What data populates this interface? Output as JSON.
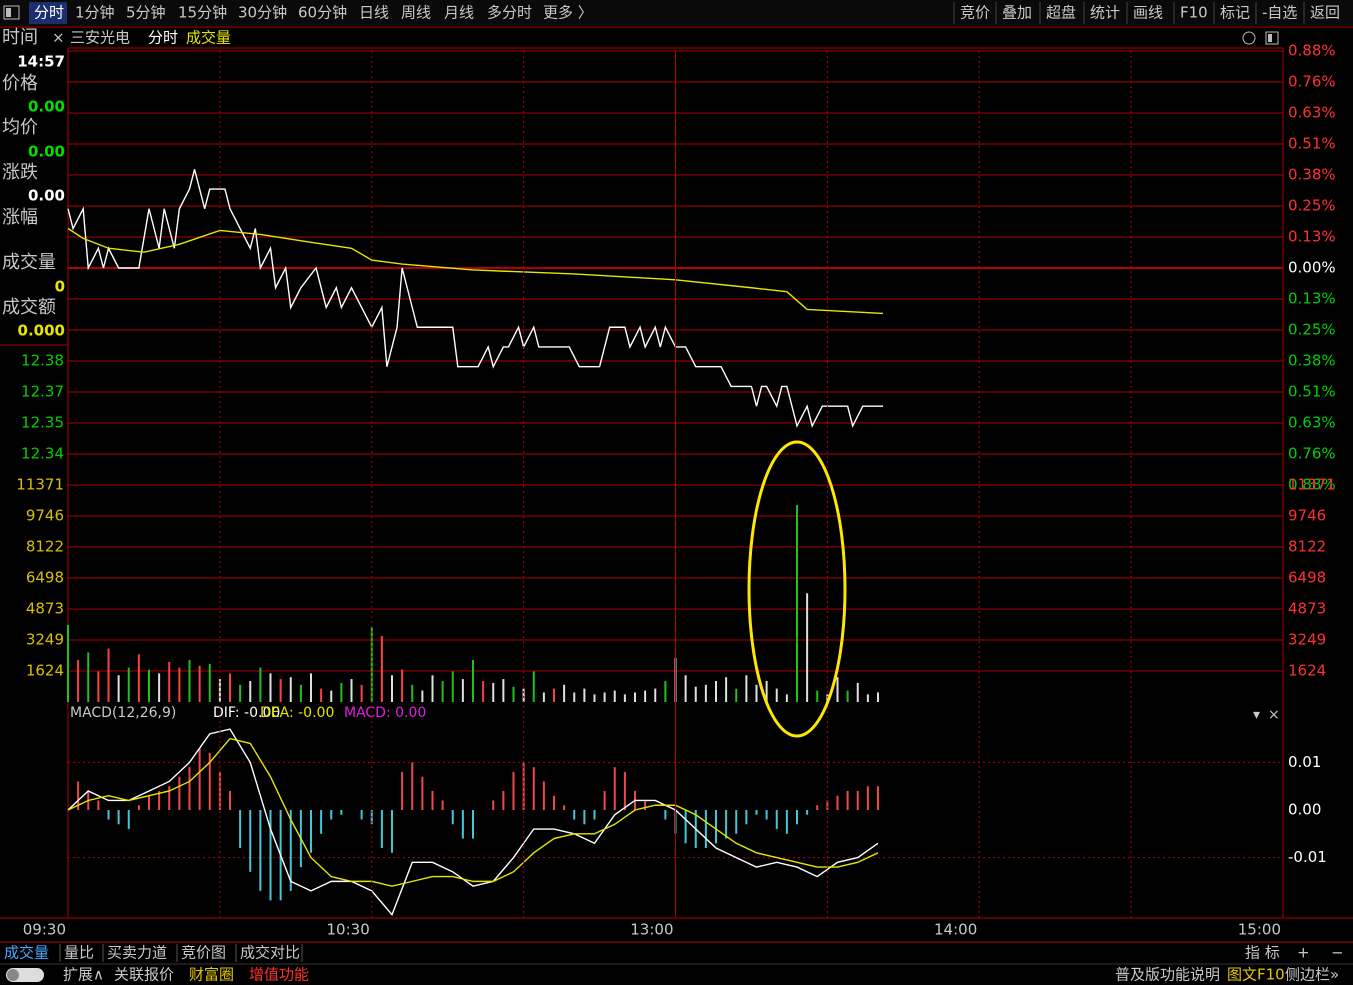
{
  "toolbar": {
    "left": [
      "分时",
      "1分钟",
      "5分钟",
      "15分钟",
      "30分钟",
      "60分钟",
      "日线",
      "周线",
      "月线",
      "多分时",
      "更多 〉"
    ],
    "right": [
      "竞价",
      "叠加",
      "超盘",
      "统计",
      "画线",
      "F10",
      "标记",
      "-自选",
      "返回"
    ]
  },
  "chart_header": {
    "close": "×",
    "stock": "三安光电",
    "mode": "分时",
    "indicator": "成交量"
  },
  "info_panel": {
    "rows": [
      {
        "label": "时间",
        "value": "14:57"
      },
      {
        "label": "价格",
        "value": "0.00"
      },
      {
        "label": "均价",
        "value": "0.00"
      },
      {
        "label": "涨跌",
        "value": "0.00"
      },
      {
        "label": "涨幅"
      },
      {
        "label": "成交量",
        "value": "0"
      },
      {
        "label": "成交额",
        "value": "0.000"
      }
    ]
  },
  "chart_data": [
    {
      "type": "line",
      "xlim": [
        0,
        240
      ],
      "ylim": [
        12.3201,
        12.5399
      ],
      "yticks": [
        {
          "value": 12.3829,
          "label": "12.38"
        },
        {
          "value": 12.3672,
          "label": "12.37"
        },
        {
          "value": 12.3515,
          "label": "12.35"
        },
        {
          "value": 12.3358,
          "label": "12.34"
        }
      ],
      "y2lim": [
        -0.8845,
        0.8845
      ],
      "y2ticks": [
        {
          "value": 0.8845,
          "label": "0.88%"
        },
        {
          "value": 0.7581,
          "label": "0.76%"
        },
        {
          "value": 0.6318,
          "label": "0.63%"
        },
        {
          "value": 0.5054,
          "label": "0.51%"
        },
        {
          "value": 0.3791,
          "label": "0.38%"
        },
        {
          "value": 0.2527,
          "label": "0.25%"
        },
        {
          "value": 0.1264,
          "label": "0.13%"
        },
        {
          "value": 0,
          "label": "0.00%"
        },
        {
          "value": -0.1264,
          "label": "0.13%"
        },
        {
          "value": -0.2527,
          "label": "0.25%"
        },
        {
          "value": -0.3791,
          "label": "0.38%"
        },
        {
          "value": -0.5054,
          "label": "0.51%"
        },
        {
          "value": -0.6318,
          "label": "0.63%"
        },
        {
          "value": -0.7581,
          "label": "0.76%"
        },
        {
          "value": -0.8845,
          "label": "0.88%"
        }
      ],
      "series": [
        {
          "color": "#ffffff",
          "x": [
            0,
            1,
            3,
            4,
            6,
            7,
            8,
            10,
            14,
            16,
            18,
            19,
            21,
            22,
            24,
            25,
            27,
            28,
            31,
            32,
            34,
            36,
            37,
            38,
            40,
            41,
            43,
            44,
            46,
            49,
            51,
            53,
            54,
            56,
            58,
            60,
            62,
            63,
            65,
            66,
            68,
            69,
            76,
            77,
            81,
            83,
            84,
            86,
            87,
            89,
            90,
            92,
            93,
            99,
            101,
            105,
            107,
            110,
            111,
            113,
            114,
            116,
            117,
            118,
            120,
            122,
            124,
            129,
            131,
            135,
            136,
            137,
            138,
            140,
            141,
            142,
            144,
            146,
            147,
            149,
            154,
            155,
            157,
            161
          ],
          "values": [
            12.46,
            12.45,
            12.46,
            12.43,
            12.44,
            12.43,
            12.44,
            12.43,
            12.43,
            12.46,
            12.44,
            12.46,
            12.44,
            12.46,
            12.47,
            12.48,
            12.46,
            12.47,
            12.47,
            12.46,
            12.45,
            12.44,
            12.45,
            12.43,
            12.44,
            12.42,
            12.43,
            12.41,
            12.42,
            12.43,
            12.41,
            12.42,
            12.41,
            12.42,
            12.41,
            12.4,
            12.41,
            12.38,
            12.4,
            12.43,
            12.41,
            12.4,
            12.4,
            12.38,
            12.38,
            12.39,
            12.38,
            12.39,
            12.39,
            12.4,
            12.39,
            12.4,
            12.39,
            12.39,
            12.38,
            12.38,
            12.4,
            12.4,
            12.39,
            12.4,
            12.39,
            12.4,
            12.39,
            12.4,
            12.39,
            12.39,
            12.38,
            12.38,
            12.37,
            12.37,
            12.36,
            12.37,
            12.37,
            12.36,
            12.37,
            12.37,
            12.35,
            12.36,
            12.35,
            12.36,
            12.36,
            12.35,
            12.36,
            12.36
          ]
        },
        {
          "color": "#e6e600",
          "x": [
            0,
            3,
            8,
            15,
            22,
            30,
            38,
            48,
            56,
            60,
            66,
            80,
            100,
            120,
            135,
            142,
            146,
            161
          ],
          "values": [
            12.45,
            12.445,
            12.44,
            12.438,
            12.442,
            12.449,
            12.447,
            12.443,
            12.44,
            12.434,
            12.432,
            12.429,
            12.427,
            12.424,
            12.42,
            12.418,
            12.409,
            12.407
          ]
        }
      ]
    },
    {
      "type": "bar",
      "xlim": [
        0,
        240
      ],
      "ylim": [
        0,
        11371
      ],
      "yticks": [
        1624,
        3249,
        4873,
        6498,
        8122,
        9746,
        11371
      ],
      "x": [
        0,
        2,
        4,
        6,
        8,
        10,
        12,
        14,
        16,
        18,
        20,
        22,
        24,
        26,
        28,
        30,
        32,
        34,
        36,
        38,
        40,
        42,
        44,
        46,
        48,
        50,
        52,
        54,
        56,
        58,
        60,
        62,
        64,
        66,
        68,
        70,
        72,
        74,
        76,
        78,
        80,
        82,
        84,
        86,
        88,
        90,
        92,
        94,
        96,
        98,
        100,
        102,
        104,
        106,
        108,
        110,
        112,
        114,
        116,
        118,
        120,
        122,
        124,
        126,
        128,
        130,
        132,
        134,
        136,
        138,
        140,
        142,
        144,
        146,
        148,
        150,
        152,
        154,
        156,
        158,
        160
      ],
      "values": [
        4040,
        2200,
        2600,
        1600,
        2800,
        1400,
        1800,
        2500,
        1700,
        1500,
        2100,
        1800,
        2200,
        1900,
        2000,
        1200,
        1500,
        900,
        1100,
        1800,
        1500,
        1200,
        1300,
        900,
        1500,
        700,
        600,
        1000,
        1200,
        900,
        3930,
        3460,
        1400,
        1700,
        900,
        600,
        1400,
        1100,
        1600,
        1200,
        2200,
        1100,
        1000,
        1200,
        800,
        700,
        1600,
        500,
        700,
        900,
        500,
        700,
        400,
        500,
        600,
        400,
        500,
        600,
        700,
        1100,
        2300,
        1400,
        800,
        900,
        1100,
        1300,
        700,
        1400,
        900,
        1100,
        700,
        400,
        10330,
        5700,
        600,
        400,
        1300,
        600,
        1000,
        400,
        500
      ],
      "bar_colors": [
        "#20c020",
        "#ff4040",
        "#20c020",
        "#ff4040",
        "#ff4040",
        "#e0e0e0",
        "#20c020",
        "#ff4040",
        "#20c020",
        "#e0e0e0",
        "#ff4040",
        "#ff4040",
        "#20c020",
        "#ff4040",
        "#20c020",
        "#e0e0e0",
        "#ff4040",
        "#20c020",
        "#e0e0e0",
        "#20c020",
        "#e0e0e0",
        "#ff4040",
        "#e0e0e0",
        "#20c020",
        "#e0e0e0",
        "#ff4040",
        "#e0e0e0",
        "#20c020",
        "#e0e0e0",
        "#ff4040",
        "#20c020",
        "#ff4040",
        "#e0e0e0",
        "#ff4040",
        "#20c020",
        "#e0e0e0",
        "#e0e0e0",
        "#20c020",
        "#20c020",
        "#e0e0e0",
        "#20c020",
        "#ff4040",
        "#e0e0e0",
        "#e0e0e0",
        "#20c020",
        "#e0e0e0",
        "#20c020",
        "#e0e0e0",
        "#ff4040",
        "#e0e0e0",
        "#e0e0e0",
        "#e0e0e0",
        "#e0e0e0",
        "#e0e0e0",
        "#e0e0e0",
        "#e0e0e0",
        "#e0e0e0",
        "#e0e0e0",
        "#e0e0e0",
        "#20c020",
        "#e0e0e0",
        "#e0e0e0",
        "#e0e0e0",
        "#e0e0e0",
        "#e0e0e0",
        "#e0e0e0",
        "#20c020",
        "#e0e0e0",
        "#e0e0e0",
        "#e0e0e0",
        "#e0e0e0",
        "#e0e0e0",
        "#20c020",
        "#e0e0e0",
        "#20c020",
        "#e0e0e0",
        "#e0e0e0",
        "#20c020",
        "#e0e0e0",
        "#e0e0e0",
        "#e0e0e0"
      ]
    },
    {
      "type": "macd",
      "title": "MACD(12,26,9)",
      "indicators": [
        {
          "text": "DIF: -0.00",
          "color": "#ffffff"
        },
        {
          "text": "DEA: -0.00",
          "color": "#e6e600"
        },
        {
          "text": "MACD: 0.00",
          "color": "#e020e0"
        }
      ],
      "xlim": [
        0,
        240
      ],
      "xticks": [
        {
          "value": 0,
          "label": "09:30"
        },
        {
          "value": 60,
          "label": "10:30"
        },
        {
          "value": 120,
          "label": "13:00"
        },
        {
          "value": 180,
          "label": "14:00"
        },
        {
          "value": 240,
          "label": "15:00"
        }
      ],
      "ylim": [
        -0.0227,
        0.0227
      ],
      "yticks": [
        0.01,
        {
          "value": 0,
          "label": "0.00"
        },
        -0.01
      ],
      "series": [
        {
          "color": "#ffffff",
          "x": [
            0,
            4,
            8,
            12,
            16,
            20,
            24,
            28,
            32,
            36,
            40,
            44,
            48,
            52,
            56,
            60,
            64,
            68,
            72,
            76,
            80,
            84,
            88,
            92,
            96,
            100,
            104,
            108,
            112,
            116,
            120,
            124,
            128,
            132,
            136,
            140,
            144,
            148,
            152,
            156,
            160
          ],
          "values": [
            0,
            0.004,
            0.002,
            0.002,
            0.004,
            0.006,
            0.01,
            0.016,
            0.017,
            0.01,
            -0.004,
            -0.015,
            -0.017,
            -0.015,
            -0.015,
            -0.017,
            -0.022,
            -0.011,
            -0.011,
            -0.013,
            -0.016,
            -0.015,
            -0.01,
            -0.004,
            -0.004,
            -0.005,
            -0.007,
            -0.001,
            0.002,
            0.002,
            0,
            -0.004,
            -0.008,
            -0.01,
            -0.012,
            -0.011,
            -0.012,
            -0.014,
            -0.011,
            -0.01,
            -0.007
          ]
        },
        {
          "color": "#e6e600",
          "x": [
            0,
            4,
            8,
            12,
            16,
            20,
            24,
            28,
            32,
            36,
            40,
            44,
            48,
            52,
            56,
            60,
            64,
            68,
            72,
            76,
            80,
            84,
            88,
            92,
            96,
            100,
            104,
            108,
            112,
            116,
            120,
            124,
            128,
            132,
            136,
            140,
            144,
            148,
            152,
            156,
            160
          ],
          "values": [
            0,
            0.002,
            0.003,
            0.002,
            0.003,
            0.004,
            0.006,
            0.01,
            0.015,
            0.014,
            0.007,
            -0.002,
            -0.01,
            -0.014,
            -0.015,
            -0.015,
            -0.016,
            -0.015,
            -0.014,
            -0.014,
            -0.015,
            -0.015,
            -0.013,
            -0.009,
            -0.006,
            -0.005,
            -0.005,
            -0.003,
            0,
            0.001,
            0.001,
            -0.001,
            -0.004,
            -0.007,
            -0.009,
            -0.01,
            -0.011,
            -0.012,
            -0.012,
            -0.011,
            -0.009
          ]
        }
      ],
      "histogram": {
        "up_color": "#f04848",
        "down_color": "#40c8d8",
        "x": [
          0,
          2,
          4,
          6,
          8,
          10,
          12,
          14,
          16,
          18,
          20,
          22,
          24,
          26,
          28,
          30,
          32,
          34,
          36,
          38,
          40,
          42,
          44,
          46,
          48,
          50,
          52,
          54,
          56,
          58,
          60,
          62,
          64,
          66,
          68,
          70,
          72,
          74,
          76,
          78,
          80,
          82,
          84,
          86,
          88,
          90,
          92,
          94,
          96,
          98,
          100,
          102,
          104,
          106,
          108,
          110,
          112,
          114,
          116,
          118,
          120,
          122,
          124,
          126,
          128,
          130,
          132,
          134,
          136,
          138,
          140,
          142,
          144,
          146,
          148,
          150,
          152,
          154,
          156,
          158,
          160
        ],
        "values": [
          0,
          0.006,
          0.004,
          0.002,
          -0.002,
          -0.003,
          -0.004,
          0.001,
          0.003,
          0.004,
          0.005,
          0.007,
          0.009,
          0.013,
          0.012,
          0.008,
          0.004,
          -0.008,
          -0.013,
          -0.017,
          -0.019,
          -0.019,
          -0.017,
          -0.012,
          -0.009,
          -0.005,
          -0.002,
          -0.001,
          0,
          -0.002,
          -0.003,
          -0.008,
          -0.009,
          0.008,
          0.01,
          0.007,
          0.004,
          0.002,
          -0.003,
          -0.006,
          -0.006,
          0,
          0.002,
          0.004,
          0.008,
          0.01,
          0.009,
          0.006,
          0.003,
          0.001,
          -0.002,
          -0.003,
          -0.002,
          0.004,
          0.009,
          0.008,
          0.004,
          0.002,
          0,
          -0.002,
          -0.005,
          -0.007,
          -0.008,
          -0.008,
          -0.007,
          -0.006,
          -0.005,
          -0.003,
          -0.001,
          -0.002,
          -0.004,
          -0.005,
          -0.003,
          -0.001,
          0.001,
          0.002,
          0.003,
          0.004,
          0.004,
          0.005,
          0.005
        ]
      }
    }
  ],
  "bottom_tabs": {
    "left": [
      "成交量",
      "量比",
      "买卖力道",
      "竞价图",
      "成交对比"
    ],
    "right": [
      "指 标",
      "+",
      "−"
    ]
  },
  "status_bar": {
    "left": [
      "扩展∧",
      "关联报价",
      "财富圈",
      "增值功能"
    ],
    "right": [
      "普及版功能说明",
      "图文F10",
      "侧边栏»"
    ]
  }
}
